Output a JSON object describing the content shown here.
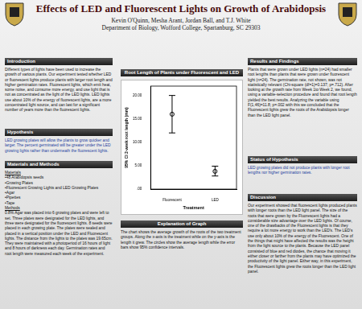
{
  "header": {
    "title": "Effects of LED and Fluorescent Lights on Growth of Arabidopsis",
    "authors": "Kevin O'Quinn, Mesha Arant, Jordan Ball, and T.J. White",
    "department": "Department of Biology, Wofford College, Spartanburg, SC 29303"
  },
  "introduction": {
    "heading": "Introduction",
    "text": "Different types of lights have been used to increase the growth of various plants. Our experiment tested whether LED or fluorescent lights produce plants with larger root length and higher germination rates. Fluorescent lights, which emit heat, some noise, and consume more energy, and use light that is not as concentrated as the light of the LED lights. LED lights use about 10% of the energy of fluorescent lights, are a more concentrated light source, and can last for a significant number of years more than the fluorescent lights."
  },
  "hypothesis": {
    "heading": "Hypothesis",
    "text": "LED growing plates will allow the plants to grow quicker and larger. The percent germinated will be greater under the LED growing lights rather than underneath the fluorescent lights."
  },
  "materials_and_methods": {
    "heading": "Materials and Methods",
    "materials_heading": "Materials",
    "materials": [
      "•48 Arabidopsis seeds",
      "•Growing Plates",
      "•Fluorescent Growing Lights and LED Growing Plates",
      "•Agar",
      "•Pipettes",
      "•Tape"
    ],
    "methods_heading": "Methods",
    "methods": "0.8% Agar was placed into 6 growing plates and were left to set. Three plates were designated for the LED lights, and three were designated for the fluorescent lights. 8 seeds were placed in each growing plate. The plates were sealed and placed in a vertical position under the LED and Fluorescent lights. The distance from the lights to the plates was 19.65cm. They were maintained with a photoperiod of 16 hours of light and 8 hours of darkness each day. Germination rates and root length were measured each week of the experiment."
  },
  "chart_data": {
    "type": "errorbar",
    "title": "Root Length of Plants under Fluorescent and LED lights",
    "x_label": "Treatment",
    "y_label": "95% CI 2-week root length (mm)",
    "categories": [
      "Fluorescent",
      "LED"
    ],
    "values": [
      16.0,
      3.8
    ],
    "ci_lower": [
      12.0,
      2.8
    ],
    "ci_upper": [
      20.0,
      4.9
    ],
    "color": "#000000",
    "marker": "circle",
    "ylim": [
      0,
      22
    ],
    "yticks": [
      {
        "value": 0,
        "label": ".00"
      },
      {
        "value": 5,
        "label": "5.00"
      },
      {
        "value": 10,
        "label": "10.00"
      },
      {
        "value": 15,
        "label": "15.00"
      },
      {
        "value": 20,
        "label": "20.00"
      }
    ],
    "grid": false
  },
  "explanation": {
    "heading": "Explanation of Graph",
    "text": "The chart shows the average growth of the roots of the two treatment groups. Along the x-axis is the treatment while on the y-axis is the length it grew. The circles show the average length while the error bars show 95% confidence intervals."
  },
  "results": {
    "heading": "Results and Findings",
    "text": "Plants that were grown under LED lights (n=24) had smaller root lengths than plants that were grown under fluorescent light (n=24). The germination rate, not shown, was not statistically relevant (Chi-square (df=1)=0.137; p=.712). After looking at the growth rate from Week 1to Week 2, we found, using a variable-selection procedure and found that root length yielded the best results. Analyzing the variable using F(1,46)=11.8; p=.002 with this we concluded that the Fluorescent lights grew the roots of the Arabidopsis longer than the LED light panel."
  },
  "status": {
    "heading": "Status of Hypothesis",
    "text": "LED growing plates did not produce plants with longer root lengths nor higher germination rates."
  },
  "discussion": {
    "heading": "Discussion",
    "text": "Our experiment showed that fluorescent lights produced plants with longer roots than the LED light panel. The size of the roots that were grown by the Fluorescent lights had a considerable size advantage over the LED lights. Of course, one of the drawbacks of the Fluorescent lights is that they require a lot more energy to work than the LED's. The LED's use only about 10% of the energy of the Fluorescent. One of the things that might have affected the results was the height from the light source to the plants. Because the LED panel consisted of blue and red diodes, the chance that moving it either closer or farther from the plants may have optimized the productivity of the light panel. Either way, in this experiment, the Fluorescent lights grew the roots longer than the LED light panel."
  }
}
